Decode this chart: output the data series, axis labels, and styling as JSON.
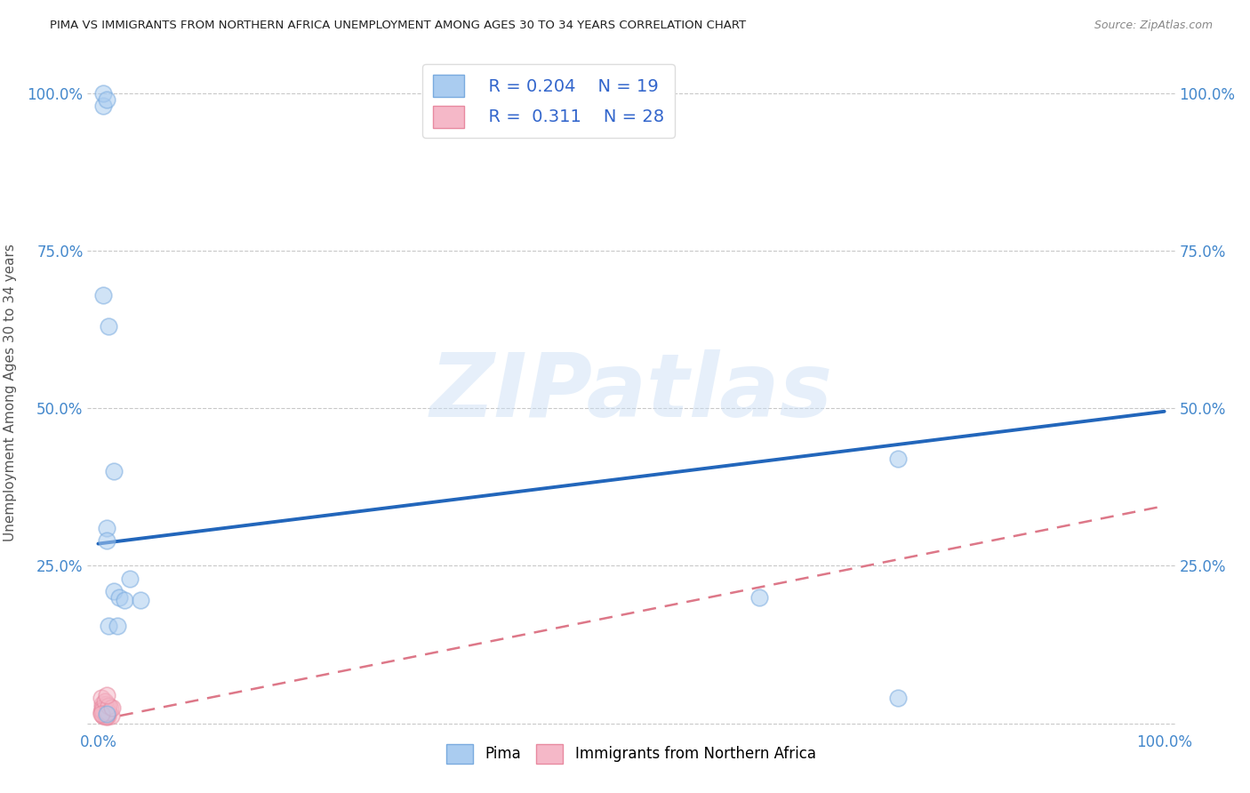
{
  "title": "PIMA VS IMMIGRANTS FROM NORTHERN AFRICA UNEMPLOYMENT AMONG AGES 30 TO 34 YEARS CORRELATION CHART",
  "source": "Source: ZipAtlas.com",
  "ylabel": "Unemployment Among Ages 30 to 34 years",
  "watermark": "ZIPatlas",
  "legend_blue_R": "0.204",
  "legend_blue_N": "19",
  "legend_pink_R": "0.311",
  "legend_pink_N": "28",
  "blue_scatter_x": [
    0.008,
    0.008,
    0.015,
    0.02,
    0.025,
    0.04,
    0.005,
    0.01,
    0.015,
    0.01,
    0.018,
    0.03,
    0.62,
    0.75,
    0.005,
    0.005,
    0.75,
    0.008,
    0.008
  ],
  "blue_scatter_y": [
    0.31,
    0.29,
    0.21,
    0.2,
    0.195,
    0.195,
    0.98,
    0.63,
    0.4,
    0.155,
    0.155,
    0.23,
    0.2,
    0.42,
    0.68,
    1.0,
    0.04,
    0.99,
    0.015
  ],
  "pink_scatter_x": [
    0.003,
    0.005,
    0.007,
    0.009,
    0.004,
    0.006,
    0.007,
    0.005,
    0.008,
    0.01,
    0.012,
    0.003,
    0.004,
    0.006,
    0.007,
    0.009,
    0.005,
    0.007,
    0.008,
    0.011,
    0.004,
    0.006,
    0.008,
    0.009,
    0.01,
    0.003,
    0.013,
    0.008
  ],
  "pink_scatter_y": [
    0.018,
    0.015,
    0.022,
    0.01,
    0.03,
    0.02,
    0.015,
    0.012,
    0.025,
    0.018,
    0.012,
    0.04,
    0.025,
    0.018,
    0.015,
    0.022,
    0.012,
    0.01,
    0.03,
    0.025,
    0.02,
    0.035,
    0.012,
    0.018,
    0.028,
    0.015,
    0.025,
    0.045
  ],
  "blue_line_x": [
    0.0,
    1.0
  ],
  "blue_line_y": [
    0.285,
    0.495
  ],
  "pink_line_x": [
    0.0,
    1.0
  ],
  "pink_line_y": [
    0.005,
    0.345
  ],
  "blue_color": "#aaccf0",
  "pink_color": "#f5b8c8",
  "blue_scatter_edge": "#7aabdf",
  "pink_scatter_edge": "#e88aa0",
  "blue_line_color": "#2266bb",
  "pink_line_color": "#dd7788",
  "background_color": "#ffffff",
  "grid_color": "#bbbbbb",
  "title_color": "#222222",
  "axis_label_color": "#555555",
  "tick_label_color": "#4488cc",
  "xlim": [
    -0.01,
    1.01
  ],
  "ylim": [
    -0.01,
    1.06
  ],
  "xticks": [
    0.0,
    0.25,
    0.5,
    0.75,
    1.0
  ],
  "yticks": [
    0.0,
    0.25,
    0.5,
    0.75,
    1.0
  ],
  "xticklabels": [
    "0.0%",
    "",
    "",
    "",
    "100.0%"
  ],
  "yticklabels": [
    "",
    "25.0%",
    "50.0%",
    "75.0%",
    "100.0%"
  ],
  "right_yticklabels": [
    "",
    "25.0%",
    "50.0%",
    "75.0%",
    "100.0%"
  ],
  "scatter_size": 180,
  "scatter_alpha": 0.55,
  "scatter_linewidth": 1.2
}
